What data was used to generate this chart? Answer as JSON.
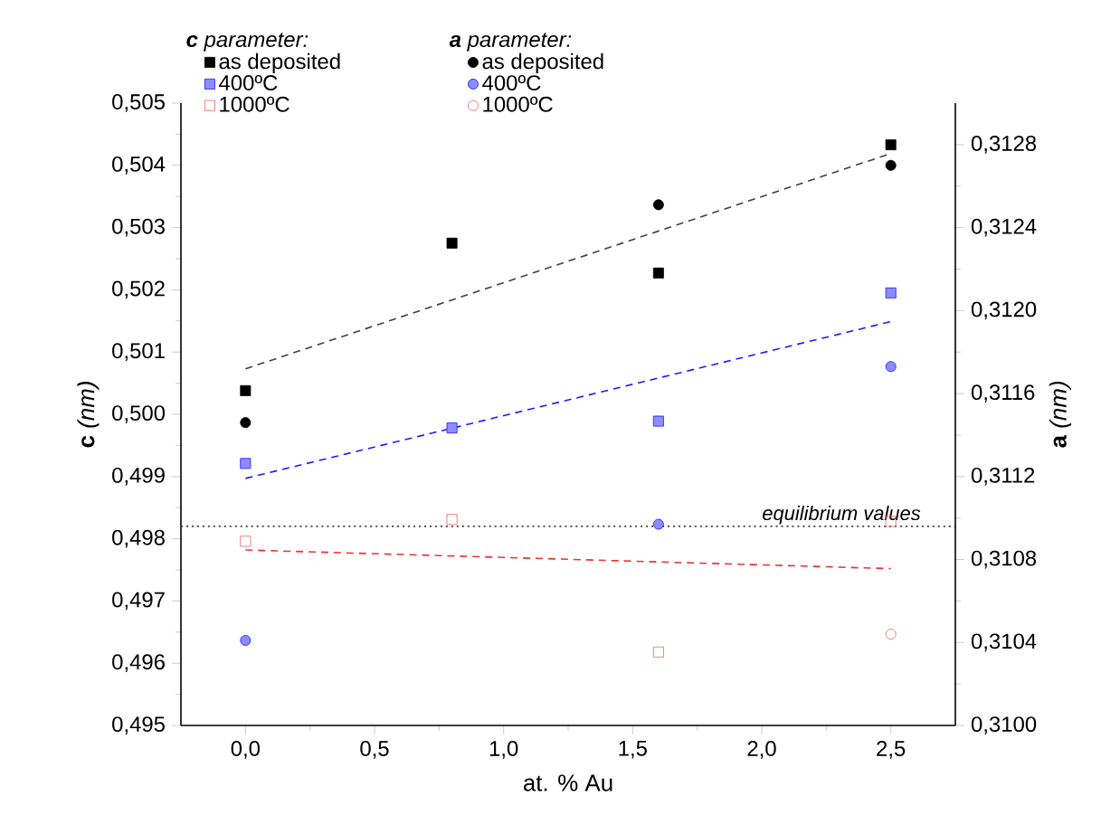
{
  "chart_data": {
    "type": "scatter",
    "xlabel": "at. % Au",
    "ylabel": "**c** *(nm)*",
    "y2label": "**a** *(nm)*",
    "annotations": [
      "**c** parameter:",
      "**a** parameter:"
    ],
    "xlim": [
      -0.25,
      2.75
    ],
    "xticks": [
      {
        "value": 0,
        "label": "0,0"
      },
      {
        "value": 0.5,
        "label": "0,5"
      },
      {
        "value": 1,
        "label": "1,0"
      },
      {
        "value": 1.5,
        "label": "1,5"
      },
      {
        "value": 2,
        "label": "2,0"
      },
      {
        "value": 2.5,
        "label": "2,5"
      }
    ],
    "ylim": [
      0.495,
      0.505
    ],
    "yticks": [
      {
        "value": 0.495,
        "label": "0,495"
      },
      {
        "value": 0.496,
        "label": "0,496"
      },
      {
        "value": 0.497,
        "label": "0,497"
      },
      {
        "value": 0.498,
        "label": "0,498"
      },
      {
        "value": 0.499,
        "label": "0,499"
      },
      {
        "value": 0.5,
        "label": "0,500"
      },
      {
        "value": 0.501,
        "label": "0,501"
      },
      {
        "value": 0.502,
        "label": "0,502"
      },
      {
        "value": 0.503,
        "label": "0,503"
      },
      {
        "value": 0.504,
        "label": "0,504"
      },
      {
        "value": 0.505,
        "label": "0,505"
      }
    ],
    "y2lim": [
      0.31,
      0.313
    ],
    "y2ticks": [
      {
        "value": 0.31,
        "label": "0,3100"
      },
      {
        "value": 0.3104,
        "label": "0,3104"
      },
      {
        "value": 0.3108,
        "label": "0,3108"
      },
      {
        "value": 0.3112,
        "label": "0,3112"
      },
      {
        "value": 0.3116,
        "label": "0,3116"
      },
      {
        "value": 0.312,
        "label": "0,3120"
      },
      {
        "value": 0.3124,
        "label": "0,3124"
      },
      {
        "value": 0.3128,
        "label": "0,3128"
      }
    ],
    "grid": false,
    "legend": "top left",
    "series": [
      {
        "name": "as deposited",
        "color": "#000000",
        "marker": "square",
        "x": [
          0,
          0.8,
          1.6,
          2.5
        ],
        "values": [
          0.50038,
          0.50275,
          0.50227,
          0.50433
        ]
      },
      {
        "name": "400ºC",
        "color": "#1a1aff",
        "marker": "square",
        "x": [
          0,
          0.8,
          1.6,
          2.5
        ],
        "values": [
          0.49921,
          0.49978,
          0.49989,
          0.50195
        ]
      },
      {
        "name": "1000ºC",
        "color": "#f06060",
        "marker": "square",
        "x": [
          0,
          0.8,
          1.6,
          2.5
        ],
        "values": [
          0.49796,
          0.49831,
          0.49618,
          0.49828
        ]
      },
      {
        "name": "as deposited",
        "color": "#000000",
        "marker": "circle",
        "axis": "y2",
        "x": [
          0,
          1.6,
          2.5
        ],
        "values": [
          0.31146,
          0.31251,
          0.3127
        ]
      },
      {
        "name": "400ºC",
        "color": "#1a1aff",
        "marker": "circle",
        "axis": "y2",
        "x": [
          0,
          1.6,
          2.5
        ],
        "values": [
          0.31041,
          0.31097,
          0.31173
        ]
      },
      {
        "name": "1000ºC",
        "color": "#f06060",
        "marker": "circle",
        "axis": "y2",
        "x": [
          2.5
        ],
        "values": [
          0.31044
        ]
      },
      {
        "type": "line",
        "color": "#404040",
        "marker": "none",
        "line_style": "dashed",
        "x": [
          0,
          2.5
        ],
        "values": [
          0.50073,
          0.50419
        ]
      },
      {
        "type": "line",
        "color": "#1a1aff",
        "marker": "none",
        "line_style": "dashed",
        "x": [
          0,
          2.5
        ],
        "values": [
          0.49897,
          0.50149
        ]
      },
      {
        "type": "line",
        "color": "#f03030",
        "marker": "none",
        "line_style": "dashed",
        "x": [
          0,
          2.5
        ],
        "values": [
          0.49782,
          0.49752
        ]
      }
    ],
    "ref_lines": [
      {
        "axis": "y",
        "value": 0.4982,
        "label": "equilibrium values",
        "color": "#404040",
        "line_style": "dotted"
      }
    ]
  }
}
